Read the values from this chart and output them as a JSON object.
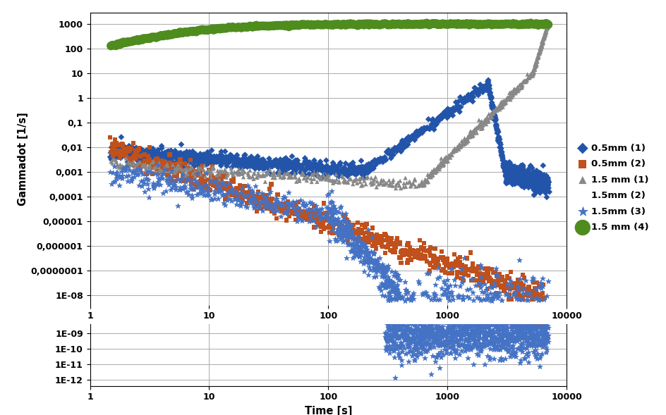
{
  "xlabel": "Time [s]",
  "ylabel": "Gammadot [1/s]",
  "series": [
    {
      "label": "0.5mm (1)",
      "color": "#2255aa",
      "marker": "D",
      "ms": 2.0
    },
    {
      "label": "0.5mm (2)",
      "color": "#c0501c",
      "marker": "s",
      "ms": 2.0
    },
    {
      "label": "1.5 mm (1)",
      "color": "#888888",
      "marker": "^",
      "ms": 2.0
    },
    {
      "label": "1.5mm (2)",
      "color": "#e8a020",
      "marker": "x",
      "ms": 2.5
    },
    {
      "label": "1.5mm (3)",
      "color": "#4472c4",
      "marker": "*",
      "ms": 2.5
    },
    {
      "label": "1.5 mm (4)",
      "color": "#4e8c1e",
      "marker": "o",
      "ms": 4.0
    }
  ],
  "yticks_upper": [
    1000,
    100,
    10,
    1,
    0.1,
    0.01,
    0.001,
    0.0001,
    1e-05,
    1e-06,
    1e-07,
    1e-08
  ],
  "ytick_labels_upper": [
    "1000",
    "100",
    "10",
    "1",
    "0,1",
    "0,01",
    "0,001",
    "0,0001",
    "0,00001",
    "0,000001",
    "0,0000001",
    "1E-08"
  ],
  "yticks_lower": [
    1e-09,
    1e-10,
    1e-11,
    1e-12
  ],
  "ytick_labels_lower": [
    "1E-09",
    "1E-10",
    "1E-11",
    "1E-12"
  ],
  "xtick_vals": [
    1,
    10,
    100,
    1000,
    10000
  ],
  "xtick_labels": [
    "1",
    "10",
    "100",
    "1000",
    "10000"
  ]
}
